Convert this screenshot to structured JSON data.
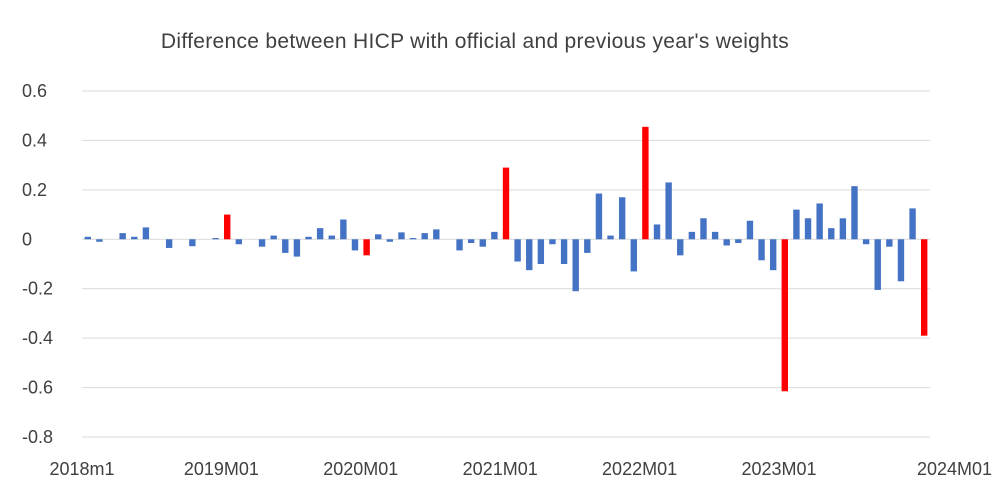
{
  "chart_data": {
    "type": "bar",
    "title": "Difference between HICP with official and previous year's weights",
    "xlabel": "",
    "ylabel": "",
    "ylim": [
      -0.8,
      0.6
    ],
    "yticks": [
      0.6,
      0.4,
      0.2,
      0,
      -0.2,
      -0.4,
      -0.6,
      -0.8
    ],
    "ytick_labels": [
      "0.6",
      "0.4",
      "0.2",
      "0",
      "-0.2",
      "-0.4",
      "-0.6",
      "-0.8"
    ],
    "grid": true,
    "legend": "none",
    "x_tick_labels": [
      {
        "index": 0,
        "label": "2018m1"
      },
      {
        "index": 12,
        "label": "2019M01"
      },
      {
        "index": 24,
        "label": "2020M01"
      },
      {
        "index": 36,
        "label": "2021M01"
      },
      {
        "index": 48,
        "label": "2022M01"
      },
      {
        "index": 60,
        "label": "2023M01"
      },
      {
        "index": 72,
        "label": "2024M01"
      }
    ],
    "colors": {
      "regular": "#4472c4",
      "january": "#ff0000",
      "grid": "#d9d9d9"
    },
    "highlight_indices": [
      12,
      24,
      36,
      48,
      60,
      72
    ],
    "values": [
      0.01,
      -0.01,
      0.0,
      0.025,
      0.01,
      0.048,
      0.0,
      -0.035,
      0.0,
      -0.028,
      0.0,
      0.005,
      0.1,
      -0.02,
      0.0,
      -0.03,
      0.015,
      -0.055,
      -0.07,
      0.01,
      0.045,
      0.015,
      0.08,
      -0.045,
      -0.065,
      0.02,
      -0.01,
      0.028,
      0.005,
      0.025,
      0.04,
      0.0,
      -0.045,
      -0.015,
      -0.03,
      0.03,
      0.29,
      -0.09,
      -0.125,
      -0.1,
      -0.02,
      -0.1,
      -0.21,
      -0.055,
      0.185,
      0.015,
      0.17,
      -0.13,
      0.455,
      0.06,
      0.23,
      -0.065,
      0.03,
      0.085,
      0.03,
      -0.025,
      -0.015,
      0.075,
      -0.085,
      -0.125,
      -0.615,
      0.12,
      0.085,
      0.145,
      0.045,
      0.085,
      0.215,
      -0.02,
      -0.205,
      -0.03,
      -0.17,
      0.125,
      -0.39
    ]
  }
}
